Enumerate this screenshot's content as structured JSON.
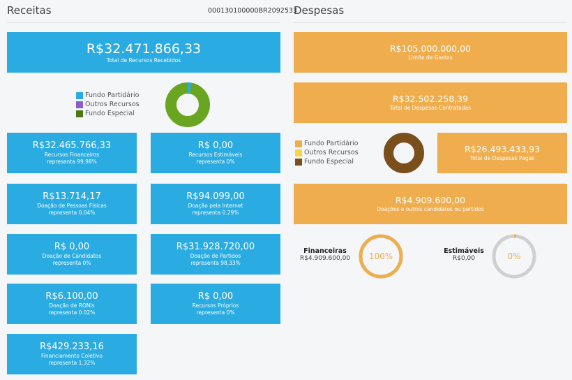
{
  "receitas": {
    "title": "Receitas",
    "code": "000130100000BR2092533",
    "total": {
      "value": "R$32.471.866,33",
      "label": "Total de Recursos Recebidos"
    },
    "legend": [
      {
        "label": "Fundo Partidário",
        "color": "#2aabe2"
      },
      {
        "label": "Outros Recursos",
        "color": "#8e5cc9"
      },
      {
        "label": "Fundo Especial",
        "color": "#4a7a16"
      }
    ],
    "donut_colors": {
      "main": "#6aa521",
      "accent": "#2aabe2"
    },
    "cards": [
      {
        "value": "R$32.465.766,33",
        "label": "Recursos Financeiros",
        "pct": "representa 99,98%"
      },
      {
        "value": "R$ 0,00",
        "label": "Recursos Estimáveis",
        "pct": "representa 0%"
      },
      {
        "value": "R$13.714,17",
        "label": "Doação de Pessoas Físicas",
        "pct": "representa 0.04%"
      },
      {
        "value": "R$94.099,00",
        "label": "Doação pela Internet",
        "pct": "representa 0.29%"
      },
      {
        "value": "R$ 0,00",
        "label": "Doação de Candidatos",
        "pct": "representa 0%"
      },
      {
        "value": "R$31.928.720,00",
        "label": "Doação de Partidos",
        "pct": "representa 98,33%"
      },
      {
        "value": "R$6.100,00",
        "label": "Doação de RONIs",
        "pct": "representa 0.02%"
      },
      {
        "value": "R$ 0,00",
        "label": "Recursos Próprios",
        "pct": "representa 0%"
      },
      {
        "value": "R$429.233,16",
        "label": "Financiamento Coletivo",
        "pct": "representa 1.32%"
      }
    ]
  },
  "despesas": {
    "title": "Despesas",
    "limite": {
      "value": "R$105.000.000,00",
      "label": "Limite de Gastos"
    },
    "contratadas": {
      "value": "R$32.502.258,39",
      "label": "Total de Despesas Contratadas"
    },
    "pagas": {
      "value": "R$26.493.433,93",
      "label": "Total de Despesas Pagas"
    },
    "doacoes": {
      "value": "R$4.909.600,00",
      "label": "Doações a outros candidatos ou partidos"
    },
    "legend": [
      {
        "label": "Fundo Partidário",
        "color": "#f0ad4e"
      },
      {
        "label": "Outros Recursos",
        "color": "#f5d547"
      },
      {
        "label": "Fundo Especial",
        "color": "#7a4f1b"
      }
    ],
    "donut_color": "#7a4f1b",
    "gauges": [
      {
        "title": "Financeiras",
        "value": "R$4.909.600,00",
        "pct_text": "100%",
        "fraction": 1.0,
        "color": "#f0ad4e"
      },
      {
        "title": "Estimáveis",
        "value": "R$0,00",
        "pct_text": "0%",
        "fraction": 0.0,
        "color": "#f0ad4e"
      }
    ]
  }
}
